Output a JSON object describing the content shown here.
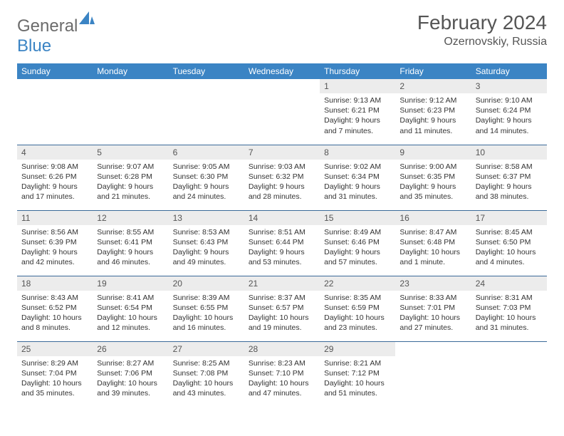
{
  "logo": {
    "text1": "General",
    "text2": "Blue",
    "text1_color": "#6b6b6b",
    "text2_color": "#3b84c4"
  },
  "title": "February 2024",
  "location": "Ozernovskiy, Russia",
  "colors": {
    "header_bg": "#3b84c4",
    "header_text": "#ffffff",
    "daynum_bg": "#ececec",
    "row_border": "#3b6a99",
    "body_text": "#333333"
  },
  "days_of_week": [
    "Sunday",
    "Monday",
    "Tuesday",
    "Wednesday",
    "Thursday",
    "Friday",
    "Saturday"
  ],
  "weeks": [
    [
      {
        "blank": true
      },
      {
        "blank": true
      },
      {
        "blank": true
      },
      {
        "blank": true
      },
      {
        "n": "1",
        "sr": "9:13 AM",
        "ss": "6:21 PM",
        "dl": "9 hours and 7 minutes."
      },
      {
        "n": "2",
        "sr": "9:12 AM",
        "ss": "6:23 PM",
        "dl": "9 hours and 11 minutes."
      },
      {
        "n": "3",
        "sr": "9:10 AM",
        "ss": "6:24 PM",
        "dl": "9 hours and 14 minutes."
      }
    ],
    [
      {
        "n": "4",
        "sr": "9:08 AM",
        "ss": "6:26 PM",
        "dl": "9 hours and 17 minutes."
      },
      {
        "n": "5",
        "sr": "9:07 AM",
        "ss": "6:28 PM",
        "dl": "9 hours and 21 minutes."
      },
      {
        "n": "6",
        "sr": "9:05 AM",
        "ss": "6:30 PM",
        "dl": "9 hours and 24 minutes."
      },
      {
        "n": "7",
        "sr": "9:03 AM",
        "ss": "6:32 PM",
        "dl": "9 hours and 28 minutes."
      },
      {
        "n": "8",
        "sr": "9:02 AM",
        "ss": "6:34 PM",
        "dl": "9 hours and 31 minutes."
      },
      {
        "n": "9",
        "sr": "9:00 AM",
        "ss": "6:35 PM",
        "dl": "9 hours and 35 minutes."
      },
      {
        "n": "10",
        "sr": "8:58 AM",
        "ss": "6:37 PM",
        "dl": "9 hours and 38 minutes."
      }
    ],
    [
      {
        "n": "11",
        "sr": "8:56 AM",
        "ss": "6:39 PM",
        "dl": "9 hours and 42 minutes."
      },
      {
        "n": "12",
        "sr": "8:55 AM",
        "ss": "6:41 PM",
        "dl": "9 hours and 46 minutes."
      },
      {
        "n": "13",
        "sr": "8:53 AM",
        "ss": "6:43 PM",
        "dl": "9 hours and 49 minutes."
      },
      {
        "n": "14",
        "sr": "8:51 AM",
        "ss": "6:44 PM",
        "dl": "9 hours and 53 minutes."
      },
      {
        "n": "15",
        "sr": "8:49 AM",
        "ss": "6:46 PM",
        "dl": "9 hours and 57 minutes."
      },
      {
        "n": "16",
        "sr": "8:47 AM",
        "ss": "6:48 PM",
        "dl": "10 hours and 1 minute."
      },
      {
        "n": "17",
        "sr": "8:45 AM",
        "ss": "6:50 PM",
        "dl": "10 hours and 4 minutes."
      }
    ],
    [
      {
        "n": "18",
        "sr": "8:43 AM",
        "ss": "6:52 PM",
        "dl": "10 hours and 8 minutes."
      },
      {
        "n": "19",
        "sr": "8:41 AM",
        "ss": "6:54 PM",
        "dl": "10 hours and 12 minutes."
      },
      {
        "n": "20",
        "sr": "8:39 AM",
        "ss": "6:55 PM",
        "dl": "10 hours and 16 minutes."
      },
      {
        "n": "21",
        "sr": "8:37 AM",
        "ss": "6:57 PM",
        "dl": "10 hours and 19 minutes."
      },
      {
        "n": "22",
        "sr": "8:35 AM",
        "ss": "6:59 PM",
        "dl": "10 hours and 23 minutes."
      },
      {
        "n": "23",
        "sr": "8:33 AM",
        "ss": "7:01 PM",
        "dl": "10 hours and 27 minutes."
      },
      {
        "n": "24",
        "sr": "8:31 AM",
        "ss": "7:03 PM",
        "dl": "10 hours and 31 minutes."
      }
    ],
    [
      {
        "n": "25",
        "sr": "8:29 AM",
        "ss": "7:04 PM",
        "dl": "10 hours and 35 minutes."
      },
      {
        "n": "26",
        "sr": "8:27 AM",
        "ss": "7:06 PM",
        "dl": "10 hours and 39 minutes."
      },
      {
        "n": "27",
        "sr": "8:25 AM",
        "ss": "7:08 PM",
        "dl": "10 hours and 43 minutes."
      },
      {
        "n": "28",
        "sr": "8:23 AM",
        "ss": "7:10 PM",
        "dl": "10 hours and 47 minutes."
      },
      {
        "n": "29",
        "sr": "8:21 AM",
        "ss": "7:12 PM",
        "dl": "10 hours and 51 minutes."
      },
      {
        "blank": true
      },
      {
        "blank": true
      }
    ]
  ],
  "labels": {
    "sunrise": "Sunrise: ",
    "sunset": "Sunset: ",
    "daylight": "Daylight: "
  }
}
